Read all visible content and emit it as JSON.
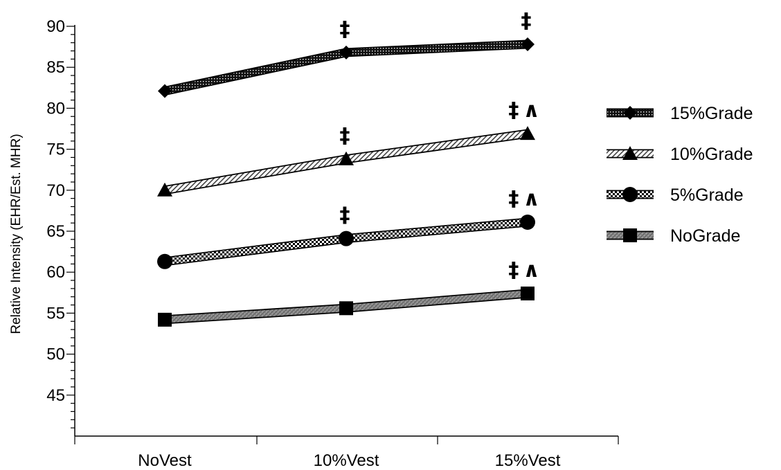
{
  "chart_data": {
    "type": "line",
    "title": "",
    "xlabel": "",
    "ylabel": "Relative Intensity (EHR/Est. MHR)",
    "categories": [
      "NoVest",
      "10%Vest",
      "15%Vest"
    ],
    "ylim": [
      40,
      90
    ],
    "yticks": [
      45,
      50,
      55,
      60,
      65,
      70,
      75,
      80,
      85,
      90
    ],
    "grid": false,
    "legend_position": "right",
    "series": [
      {
        "name": "15%Grade",
        "values": [
          82.1,
          86.8,
          87.8
        ],
        "marker": "diamond",
        "pattern": "dots-dark"
      },
      {
        "name": "10%Grade",
        "values": [
          70.0,
          73.8,
          76.9
        ],
        "marker": "triangle",
        "pattern": "hatch-light"
      },
      {
        "name": "5%Grade",
        "values": [
          61.3,
          64.1,
          66.1
        ],
        "marker": "circle",
        "pattern": "checker"
      },
      {
        "name": "NoGrade",
        "values": [
          54.2,
          55.6,
          57.4
        ],
        "marker": "square",
        "pattern": "crosshatch-gray"
      }
    ],
    "annotations": [
      {
        "category": "10%Vest",
        "series": "15%Grade",
        "text": "‡"
      },
      {
        "category": "15%Vest",
        "series": "15%Grade",
        "text": "‡"
      },
      {
        "category": "10%Vest",
        "series": "10%Grade",
        "text": "‡"
      },
      {
        "category": "15%Vest",
        "series": "10%Grade",
        "text": "‡∧"
      },
      {
        "category": "10%Vest",
        "series": "5%Grade",
        "text": "‡"
      },
      {
        "category": "15%Vest",
        "series": "5%Grade",
        "text": "‡∧"
      },
      {
        "category": "15%Vest",
        "series": "NoGrade",
        "text": "‡∧"
      }
    ]
  }
}
